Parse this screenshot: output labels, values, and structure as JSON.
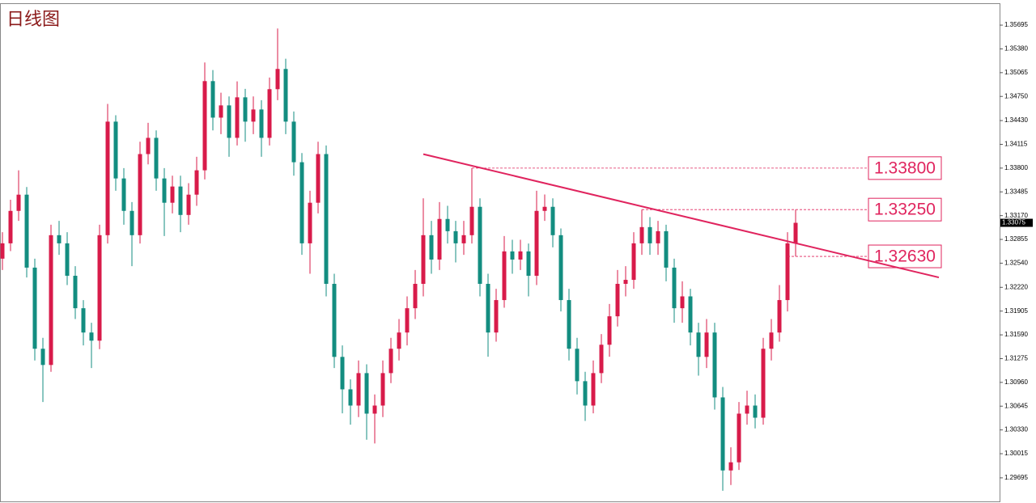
{
  "chart_data": {
    "type": "candlestick",
    "title": "日线图",
    "up_color": "#d81b4a",
    "down_color": "#138d80",
    "level_color": "#e0245e",
    "ylim": [
      1.29383,
      1.35985
    ],
    "yticks": [
      1.35695,
      {
        "value": 1.3538,
        "label": "1.35380"
      },
      1.35065,
      {
        "value": 1.3475,
        "label": "1.34750"
      },
      {
        "value": 1.3443,
        "label": "1.34430"
      },
      1.34115,
      {
        "value": 1.338,
        "label": "1.33800"
      },
      1.33485,
      {
        "value": 1.3317,
        "label": "1.33170"
      },
      1.32855,
      {
        "value": 1.3254,
        "label": "1.32540"
      },
      {
        "value": 1.3222,
        "label": "1.32220"
      },
      1.31905,
      {
        "value": 1.3159,
        "label": "1.31590"
      },
      1.31275,
      {
        "value": 1.3096,
        "label": "1.30960"
      },
      1.30645,
      {
        "value": 1.3033,
        "label": "1.30330"
      },
      1.30015,
      1.29695
    ],
    "open": [
      1.326,
      1.32803,
      1.33233,
      1.33448,
      1.32481,
      1.31406,
      1.31191,
      1.32911,
      1.32803,
      1.32373,
      1.31943,
      1.31621,
      1.31513,
      1.32911,
      1.34416,
      1.33663,
      1.33233,
      1.32911,
      1.33986,
      1.34201,
      1.33663,
      1.33341,
      1.33556,
      1.33179,
      1.33448,
      1.33771,
      1.34953,
      1.34469,
      1.34631,
      1.34201,
      1.34738,
      1.34416,
      1.34577,
      1.34201,
      1.34846,
      1.35114,
      1.34416,
      1.33878,
      1.32803,
      1.33341,
      1.33986,
      1.32266,
      1.31298,
      1.30868,
      1.30653,
      1.31083,
      1.30546,
      1.30653,
      1.31083,
      1.31406,
      1.31621,
      1.31943,
      1.32266,
      1.32911,
      1.32588,
      1.33126,
      1.32964,
      1.32803,
      1.32911,
      1.33287,
      1.32266,
      1.31621,
      1.32051,
      1.32696,
      1.32588,
      1.32696,
      1.32373,
      1.33233,
      1.33287,
      1.32911,
      1.32051,
      1.31406,
      1.30976,
      1.30653,
      1.31083,
      1.31459,
      1.31836,
      1.32266,
      1.32319,
      1.32803,
      1.33018,
      1.32803,
      1.32964,
      1.32481,
      1.31943,
      1.321,
      1.31621,
      1.31298,
      1.31621,
      1.30761,
      1.29793,
      1.29901,
      1.30546,
      1.30653,
      1.30492,
      1.31406,
      1.31621,
      1.32051,
      1.32803
    ],
    "high": [
      1.3295,
      1.3338,
      1.33771,
      1.3355,
      1.326,
      1.3155,
      1.3305,
      1.331,
      1.3295,
      1.325,
      1.3205,
      1.3175,
      1.3305,
      1.3465,
      1.345,
      1.338,
      1.3335,
      1.3415,
      1.344,
      1.343,
      1.338,
      1.337,
      1.337,
      1.336,
      1.3395,
      1.352,
      1.351,
      1.348,
      1.3475,
      1.3495,
      1.3485,
      1.3475,
      1.347,
      1.35,
      1.3565,
      1.3525,
      1.3455,
      1.34,
      1.335,
      1.3415,
      1.341,
      1.324,
      1.3145,
      1.31,
      1.3125,
      1.312,
      1.308,
      1.3125,
      1.3155,
      1.318,
      1.321,
      1.3245,
      1.334,
      1.331,
      1.3335,
      1.333,
      1.331,
      1.331,
      1.338,
      1.334,
      1.324,
      1.322,
      1.329,
      1.3285,
      1.3285,
      1.328,
      1.335,
      1.3345,
      1.334,
      1.33,
      1.322,
      1.3155,
      1.311,
      1.3125,
      1.316,
      1.32,
      1.3245,
      1.325,
      1.3295,
      1.3325,
      1.3315,
      1.331,
      1.3305,
      1.326,
      1.323,
      1.322,
      1.3175,
      1.318,
      1.3175,
      1.309,
      1.301,
      1.307,
      1.3085,
      1.308,
      1.3155,
      1.318,
      1.3225,
      1.3295,
      1.3325
    ],
    "low": [
      1.3245,
      1.327,
      1.331,
      1.3235,
      1.3125,
      1.307,
      1.311,
      1.3265,
      1.3225,
      1.318,
      1.3145,
      1.3115,
      1.314,
      1.328,
      1.335,
      1.3305,
      1.325,
      1.328,
      1.3385,
      1.335,
      1.329,
      1.332,
      1.3295,
      1.3305,
      1.333,
      1.3365,
      1.343,
      1.3425,
      1.3395,
      1.341,
      1.3415,
      1.3425,
      1.3395,
      1.341,
      1.347,
      1.3425,
      1.337,
      1.3265,
      1.324,
      1.332,
      1.321,
      1.3115,
      1.3055,
      1.304,
      1.305,
      1.302,
      1.3015,
      1.305,
      1.3095,
      1.3125,
      1.3145,
      1.318,
      1.321,
      1.324,
      1.3245,
      1.328,
      1.3255,
      1.3265,
      1.328,
      1.321,
      1.313,
      1.315,
      1.3195,
      1.324,
      1.3245,
      1.321,
      1.3225,
      1.331,
      1.3275,
      1.319,
      1.3125,
      1.308,
      1.3045,
      1.3055,
      1.3095,
      1.313,
      1.317,
      1.321,
      1.322,
      1.3265,
      1.3265,
      1.3265,
      1.323,
      1.3175,
      1.3175,
      1.3145,
      1.3105,
      1.3115,
      1.306,
      1.29524,
      1.296,
      1.298,
      1.304,
      1.3035,
      1.304,
      1.3125,
      1.315,
      1.319,
      1.3263
    ],
    "close": [
      1.32803,
      1.33233,
      1.33448,
      1.32481,
      1.31406,
      1.31191,
      1.32911,
      1.32803,
      1.32373,
      1.31943,
      1.31621,
      1.31513,
      1.32911,
      1.34416,
      1.33663,
      1.33233,
      1.32911,
      1.33986,
      1.34201,
      1.33663,
      1.33341,
      1.33556,
      1.33179,
      1.33448,
      1.33771,
      1.34953,
      1.34469,
      1.34631,
      1.34201,
      1.34738,
      1.34416,
      1.34577,
      1.34201,
      1.34846,
      1.35114,
      1.34416,
      1.33878,
      1.32803,
      1.33341,
      1.33986,
      1.32266,
      1.31298,
      1.30868,
      1.30653,
      1.31083,
      1.30546,
      1.30653,
      1.31083,
      1.31406,
      1.31621,
      1.31943,
      1.32266,
      1.32911,
      1.32588,
      1.33126,
      1.32964,
      1.32803,
      1.32911,
      1.33287,
      1.32266,
      1.31621,
      1.32051,
      1.32696,
      1.32588,
      1.32696,
      1.32373,
      1.33233,
      1.33287,
      1.32911,
      1.32051,
      1.31406,
      1.30976,
      1.30653,
      1.31083,
      1.31459,
      1.31836,
      1.32266,
      1.32319,
      1.32803,
      1.33018,
      1.32803,
      1.32964,
      1.32481,
      1.31943,
      1.321,
      1.31621,
      1.31298,
      1.31621,
      1.30761,
      1.29793,
      1.29901,
      1.30546,
      1.30653,
      1.30492,
      1.31406,
      1.31621,
      1.32051,
      1.32803,
      1.33075
    ],
    "levels": [
      {
        "value": 1.338,
        "label": "1.33800",
        "from": 58
      },
      {
        "value": 1.3325,
        "label": "1.33250",
        "from": 79
      },
      {
        "value": 1.3263,
        "label": "1.32630",
        "from": 97
      }
    ],
    "trendline": {
      "from": [
        52,
        1.33985
      ],
      "to": [
        115.7,
        1.32351
      ]
    }
  }
}
